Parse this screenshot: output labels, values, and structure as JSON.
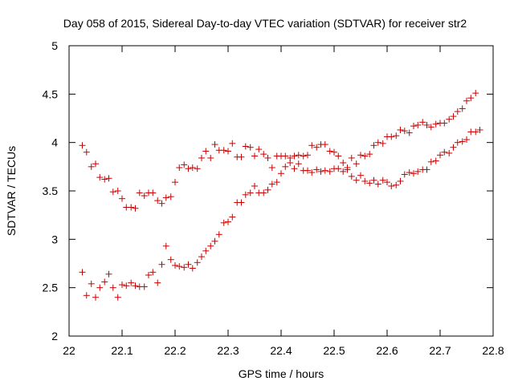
{
  "chart_data": {
    "type": "scatter",
    "title": "Day 058 of 2015, Sidereal Day-to-day VTEC variation (SDTVAR) for receiver str2",
    "xlabel": "GPS time / hours",
    "ylabel": "SDTVAR / TECUs",
    "xlim": [
      22,
      22.8
    ],
    "ylim": [
      2,
      5
    ],
    "x_ticks": [
      "22",
      "22.1",
      "22.2",
      "22.3",
      "22.4",
      "22.5",
      "22.6",
      "22.7",
      "22.8"
    ],
    "y_ticks": [
      "2",
      "2.5",
      "3",
      "3.5",
      "4",
      "4.5",
      "5"
    ],
    "grid": false,
    "legend": "none",
    "marker": "plus",
    "color": "#cc0000",
    "points": [
      [
        22.025,
        3.97
      ],
      [
        22.033,
        3.9
      ],
      [
        22.042,
        3.75
      ],
      [
        22.05,
        3.78
      ],
      [
        22.058,
        3.64
      ],
      [
        22.067,
        3.62
      ],
      [
        22.075,
        3.63
      ],
      [
        22.083,
        3.49
      ],
      [
        22.092,
        3.5
      ],
      [
        22.1,
        3.42
      ],
      [
        22.108,
        3.33
      ],
      [
        22.117,
        3.33
      ],
      [
        22.125,
        3.32
      ],
      [
        22.133,
        3.48
      ],
      [
        22.142,
        3.45
      ],
      [
        22.15,
        3.48
      ],
      [
        22.158,
        3.48
      ],
      [
        22.167,
        3.4
      ],
      [
        22.175,
        3.37
      ],
      [
        22.183,
        3.43
      ],
      [
        22.192,
        3.44
      ],
      [
        22.2,
        3.59
      ],
      [
        22.208,
        3.74
      ],
      [
        22.217,
        3.77
      ],
      [
        22.225,
        3.73
      ],
      [
        22.233,
        3.74
      ],
      [
        22.242,
        3.73
      ],
      [
        22.25,
        3.84
      ],
      [
        22.258,
        3.91
      ],
      [
        22.267,
        3.84
      ],
      [
        22.275,
        3.98
      ],
      [
        22.283,
        3.92
      ],
      [
        22.292,
        3.92
      ],
      [
        22.3,
        3.91
      ],
      [
        22.308,
        3.99
      ],
      [
        22.317,
        3.85
      ],
      [
        22.325,
        3.85
      ],
      [
        22.333,
        3.96
      ],
      [
        22.342,
        3.95
      ],
      [
        22.35,
        3.86
      ],
      [
        22.358,
        3.93
      ],
      [
        22.367,
        3.88
      ],
      [
        22.375,
        3.84
      ],
      [
        22.383,
        3.74
      ],
      [
        22.392,
        3.86
      ],
      [
        22.4,
        3.86
      ],
      [
        22.408,
        3.86
      ],
      [
        22.417,
        3.84
      ],
      [
        22.425,
        3.86
      ],
      [
        22.433,
        3.87
      ],
      [
        22.442,
        3.86
      ],
      [
        22.45,
        3.87
      ],
      [
        22.458,
        3.97
      ],
      [
        22.467,
        3.95
      ],
      [
        22.475,
        3.98
      ],
      [
        22.483,
        3.98
      ],
      [
        22.492,
        3.91
      ],
      [
        22.5,
        3.9
      ],
      [
        22.508,
        3.86
      ],
      [
        22.517,
        3.79
      ],
      [
        22.525,
        3.74
      ],
      [
        22.533,
        3.84
      ],
      [
        22.542,
        3.78
      ],
      [
        22.55,
        3.87
      ],
      [
        22.558,
        3.86
      ],
      [
        22.567,
        3.88
      ],
      [
        22.575,
        3.97
      ],
      [
        22.583,
        4.0
      ],
      [
        22.592,
        3.99
      ],
      [
        22.6,
        4.06
      ],
      [
        22.608,
        4.06
      ],
      [
        22.617,
        4.07
      ],
      [
        22.625,
        4.13
      ],
      [
        22.633,
        4.12
      ],
      [
        22.642,
        4.1
      ],
      [
        22.65,
        4.17
      ],
      [
        22.658,
        4.18
      ],
      [
        22.667,
        4.21
      ],
      [
        22.675,
        4.18
      ],
      [
        22.683,
        4.16
      ],
      [
        22.692,
        4.19
      ],
      [
        22.7,
        4.2
      ],
      [
        22.708,
        4.2
      ],
      [
        22.717,
        4.24
      ],
      [
        22.725,
        4.27
      ],
      [
        22.733,
        4.32
      ],
      [
        22.742,
        4.35
      ],
      [
        22.75,
        4.43
      ],
      [
        22.758,
        4.46
      ],
      [
        22.767,
        4.51
      ],
      [
        22.025,
        2.66
      ],
      [
        22.033,
        2.42
      ],
      [
        22.042,
        2.54
      ],
      [
        22.05,
        2.4
      ],
      [
        22.058,
        2.5
      ],
      [
        22.067,
        2.56
      ],
      [
        22.075,
        2.64
      ],
      [
        22.083,
        2.5
      ],
      [
        22.092,
        2.4
      ],
      [
        22.1,
        2.53
      ],
      [
        22.108,
        2.52
      ],
      [
        22.117,
        2.55
      ],
      [
        22.125,
        2.52
      ],
      [
        22.133,
        2.51
      ],
      [
        22.142,
        2.51
      ],
      [
        22.15,
        2.63
      ],
      [
        22.158,
        2.66
      ],
      [
        22.167,
        2.55
      ],
      [
        22.175,
        2.74
      ],
      [
        22.183,
        2.93
      ],
      [
        22.192,
        2.79
      ],
      [
        22.2,
        2.73
      ],
      [
        22.208,
        2.72
      ],
      [
        22.217,
        2.71
      ],
      [
        22.225,
        2.74
      ],
      [
        22.233,
        2.7
      ],
      [
        22.242,
        2.76
      ],
      [
        22.25,
        2.82
      ],
      [
        22.258,
        2.88
      ],
      [
        22.267,
        2.93
      ],
      [
        22.275,
        2.98
      ],
      [
        22.283,
        3.05
      ],
      [
        22.292,
        3.17
      ],
      [
        22.3,
        3.18
      ],
      [
        22.308,
        3.23
      ],
      [
        22.317,
        3.38
      ],
      [
        22.325,
        3.38
      ],
      [
        22.333,
        3.46
      ],
      [
        22.342,
        3.48
      ],
      [
        22.35,
        3.55
      ],
      [
        22.358,
        3.48
      ],
      [
        22.367,
        3.48
      ],
      [
        22.375,
        3.51
      ],
      [
        22.383,
        3.57
      ],
      [
        22.392,
        3.59
      ],
      [
        22.4,
        3.68
      ],
      [
        22.408,
        3.75
      ],
      [
        22.417,
        3.79
      ],
      [
        22.425,
        3.73
      ],
      [
        22.433,
        3.78
      ],
      [
        22.442,
        3.71
      ],
      [
        22.45,
        3.71
      ],
      [
        22.458,
        3.69
      ],
      [
        22.467,
        3.72
      ],
      [
        22.475,
        3.7
      ],
      [
        22.483,
        3.71
      ],
      [
        22.492,
        3.7
      ],
      [
        22.5,
        3.73
      ],
      [
        22.508,
        3.73
      ],
      [
        22.517,
        3.7
      ],
      [
        22.525,
        3.72
      ],
      [
        22.533,
        3.65
      ],
      [
        22.542,
        3.61
      ],
      [
        22.55,
        3.66
      ],
      [
        22.558,
        3.6
      ],
      [
        22.567,
        3.58
      ],
      [
        22.575,
        3.61
      ],
      [
        22.583,
        3.57
      ],
      [
        22.592,
        3.61
      ],
      [
        22.6,
        3.59
      ],
      [
        22.608,
        3.55
      ],
      [
        22.617,
        3.56
      ],
      [
        22.625,
        3.6
      ],
      [
        22.633,
        3.67
      ],
      [
        22.642,
        3.69
      ],
      [
        22.65,
        3.68
      ],
      [
        22.658,
        3.7
      ],
      [
        22.667,
        3.72
      ],
      [
        22.675,
        3.72
      ],
      [
        22.683,
        3.8
      ],
      [
        22.692,
        3.81
      ],
      [
        22.7,
        3.87
      ],
      [
        22.708,
        3.9
      ],
      [
        22.717,
        3.89
      ],
      [
        22.725,
        3.95
      ],
      [
        22.733,
        4.0
      ],
      [
        22.742,
        4.01
      ],
      [
        22.75,
        4.03
      ],
      [
        22.758,
        4.11
      ],
      [
        22.767,
        4.11
      ],
      [
        22.775,
        4.13
      ]
    ]
  }
}
